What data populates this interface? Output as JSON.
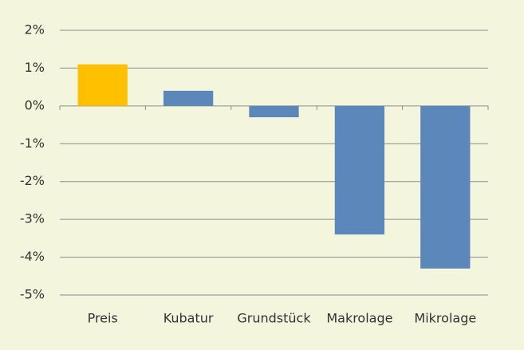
{
  "chart_data": {
    "type": "bar",
    "categories": [
      "Preis",
      "Kubatur",
      "Grundstück",
      "Makrolage",
      "Mikrolage"
    ],
    "values": [
      1.1,
      0.4,
      -0.3,
      -3.4,
      -4.3
    ],
    "colors": [
      "#ffc000",
      "#5b87ba",
      "#5b87ba",
      "#5b87ba",
      "#5b87ba"
    ],
    "ylim": [
      -5,
      2
    ],
    "yticks": [
      {
        "value": -5,
        "label": "-5%"
      },
      {
        "value": -4,
        "label": "-4%"
      },
      {
        "value": -3,
        "label": "-3%"
      },
      {
        "value": -2,
        "label": "-2%"
      },
      {
        "value": -1,
        "label": "-1%"
      },
      {
        "value": 0,
        "label": "0%"
      },
      {
        "value": 1,
        "label": "1%"
      },
      {
        "value": 2,
        "label": "2%"
      }
    ],
    "grid": true
  }
}
